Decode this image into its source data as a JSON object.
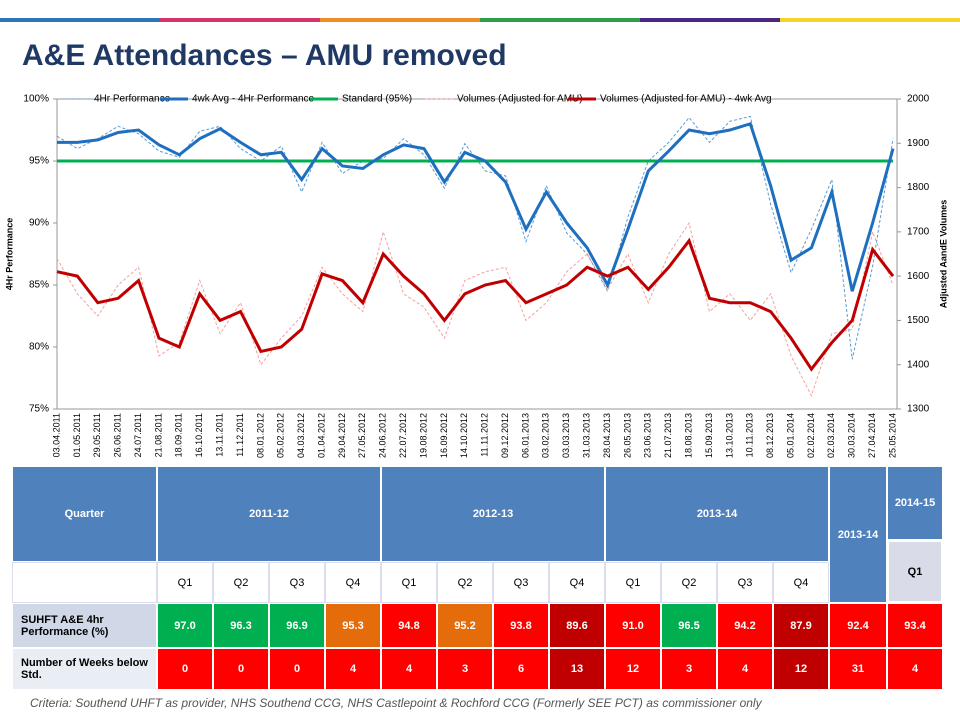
{
  "header": {
    "title": "A&E Attendances – AMU removed"
  },
  "chart_data": {
    "type": "line",
    "ylabel": "4Hr Performance",
    "y2label": "Adjusted AandE Volumes",
    "x": [
      "03.04.2011",
      "01.05.2011",
      "29.05.2011",
      "26.06.2011",
      "24.07.2011",
      "21.08.2011",
      "18.09.2011",
      "16.10.2011",
      "13.11.2011",
      "11.12.2011",
      "08.01.2012",
      "05.02.2012",
      "04.03.2012",
      "01.04.2012",
      "29.04.2012",
      "27.05.2012",
      "24.06.2012",
      "22.07.2012",
      "19.08.2012",
      "16.09.2012",
      "14.10.2012",
      "11.11.2012",
      "09.12.2012",
      "06.01.2013",
      "03.02.2013",
      "03.03.2013",
      "31.03.2013",
      "28.04.2013",
      "26.05.2013",
      "23.06.2013",
      "21.07.2013",
      "18.08.2013",
      "15.09.2013",
      "13.10.2013",
      "10.11.2013",
      "08.12.2013",
      "05.01.2014",
      "02.02.2014",
      "02.03.2014",
      "30.03.2014",
      "27.04.2014",
      "25.05.2014"
    ],
    "ylim": [
      75,
      100
    ],
    "yticks": [
      {
        "value": 75,
        "label": "75%"
      },
      {
        "value": 80,
        "label": "80%"
      },
      {
        "value": 85,
        "label": "85%"
      },
      {
        "value": 90,
        "label": "90%"
      },
      {
        "value": 95,
        "label": "95%"
      },
      {
        "value": 100,
        "label": "100%"
      }
    ],
    "y2lim": [
      1300,
      2000
    ],
    "y2ticks": [
      1300,
      1400,
      1500,
      1600,
      1700,
      1800,
      1900,
      2000
    ],
    "series": [
      {
        "name": "4Hr Performance",
        "color": "#5b9bd5",
        "dashed": true,
        "values": [
          97,
          96,
          96.8,
          97.8,
          97.2,
          95.8,
          95.3,
          97.4,
          97.8,
          96,
          95,
          96.2,
          92.5,
          96.5,
          94,
          95,
          95.2,
          96.8,
          95.5,
          92.8,
          96.4,
          94.2,
          93.8,
          88.5,
          93,
          89.2,
          87.5,
          84.5,
          90.5,
          95,
          96.5,
          98.5,
          96.5,
          98.2,
          98.6,
          91.5,
          86,
          89.5,
          93.5,
          79,
          86.5,
          96.8
        ]
      },
      {
        "name": "4wk Avg - 4Hr Performance",
        "color": "#1f6fbf",
        "values": [
          96.5,
          96.5,
          96.7,
          97.3,
          97.5,
          96.3,
          95.5,
          96.8,
          97.6,
          96.5,
          95.5,
          95.7,
          93.5,
          96,
          94.6,
          94.4,
          95.5,
          96.3,
          96,
          93.3,
          95.7,
          95,
          93.3,
          89.5,
          92.5,
          90,
          88,
          85,
          89.5,
          94.2,
          95.8,
          97.5,
          97.2,
          97.5,
          98,
          93,
          87,
          88,
          92.5,
          84.5,
          90,
          96
        ]
      },
      {
        "name": "Standard (95%)",
        "color": "#00b050",
        "values": [
          95,
          95,
          95,
          95,
          95,
          95,
          95,
          95,
          95,
          95,
          95,
          95,
          95,
          95,
          95,
          95,
          95,
          95,
          95,
          95,
          95,
          95,
          95,
          95,
          95,
          95,
          95,
          95,
          95,
          95,
          95,
          95,
          95,
          95,
          95,
          95,
          95,
          95,
          95,
          95,
          95,
          95
        ]
      },
      {
        "name": "Volumes (Adjusted for AMU)",
        "color": "#f4a0a0",
        "dashed": true,
        "axis": "y2",
        "values": [
          1640,
          1560,
          1510,
          1580,
          1620,
          1420,
          1450,
          1590,
          1470,
          1540,
          1400,
          1460,
          1510,
          1620,
          1560,
          1520,
          1700,
          1560,
          1530,
          1460,
          1590,
          1610,
          1620,
          1500,
          1540,
          1610,
          1650,
          1570,
          1650,
          1540,
          1650,
          1720,
          1520,
          1560,
          1500,
          1560,
          1420,
          1330,
          1470,
          1480,
          1700,
          1580
        ]
      },
      {
        "name": "Volumes (Adjusted for AMU) - 4wk Avg",
        "color": "#c00000",
        "axis": "y2",
        "values": [
          1610,
          1600,
          1540,
          1550,
          1590,
          1460,
          1440,
          1560,
          1500,
          1520,
          1430,
          1440,
          1480,
          1605,
          1590,
          1540,
          1650,
          1600,
          1560,
          1500,
          1560,
          1580,
          1590,
          1540,
          1560,
          1580,
          1620,
          1600,
          1620,
          1570,
          1620,
          1680,
          1550,
          1540,
          1540,
          1520,
          1460,
          1390,
          1450,
          1500,
          1660,
          1600
        ]
      }
    ]
  },
  "table": {
    "header": [
      "Quarter",
      "2011-12",
      "2012-13",
      "2013-14",
      "2013-14",
      "2014-15"
    ],
    "quarters": [
      "Q1",
      "Q2",
      "Q3",
      "Q4",
      "Q1",
      "Q2",
      "Q3",
      "Q4",
      "Q1",
      "Q2",
      "Q3",
      "Q4"
    ],
    "q_2014": "Q1",
    "rows": [
      {
        "label": "SUHFT A&E 4hr Performance (%)",
        "cells": [
          "97.0",
          "96.3",
          "96.9",
          "95.3",
          "94.8",
          "95.2",
          "93.8",
          "89.6",
          "91.0",
          "96.5",
          "94.2",
          "87.9",
          "92.4",
          "93.4"
        ],
        "colors": [
          "#00b050",
          "#00b050",
          "#00b050",
          "#e46c0a",
          "#ff0000",
          "#e46c0a",
          "#ff0000",
          "#c00000",
          "#ff0000",
          "#00b050",
          "#ff0000",
          "#c00000",
          "#ff0000",
          "#ff0000"
        ]
      },
      {
        "label": "Number of Weeks below Std.",
        "cells": [
          "0",
          "0",
          "0",
          "4",
          "4",
          "3",
          "6",
          "13",
          "12",
          "3",
          "4",
          "12",
          "31",
          "4"
        ],
        "colors": [
          "#ff0000",
          "#ff0000",
          "#ff0000",
          "#ff0000",
          "#ff0000",
          "#ff0000",
          "#ff0000",
          "#c00000",
          "#ff0000",
          "#ff0000",
          "#ff0000",
          "#c00000",
          "#ff0000",
          "#ff0000"
        ]
      }
    ]
  },
  "footnote": "Criteria: Southend UHFT as provider, NHS Southend CCG, NHS Castlepoint & Rochford CCG (Formerly SEE PCT) as commissioner only"
}
